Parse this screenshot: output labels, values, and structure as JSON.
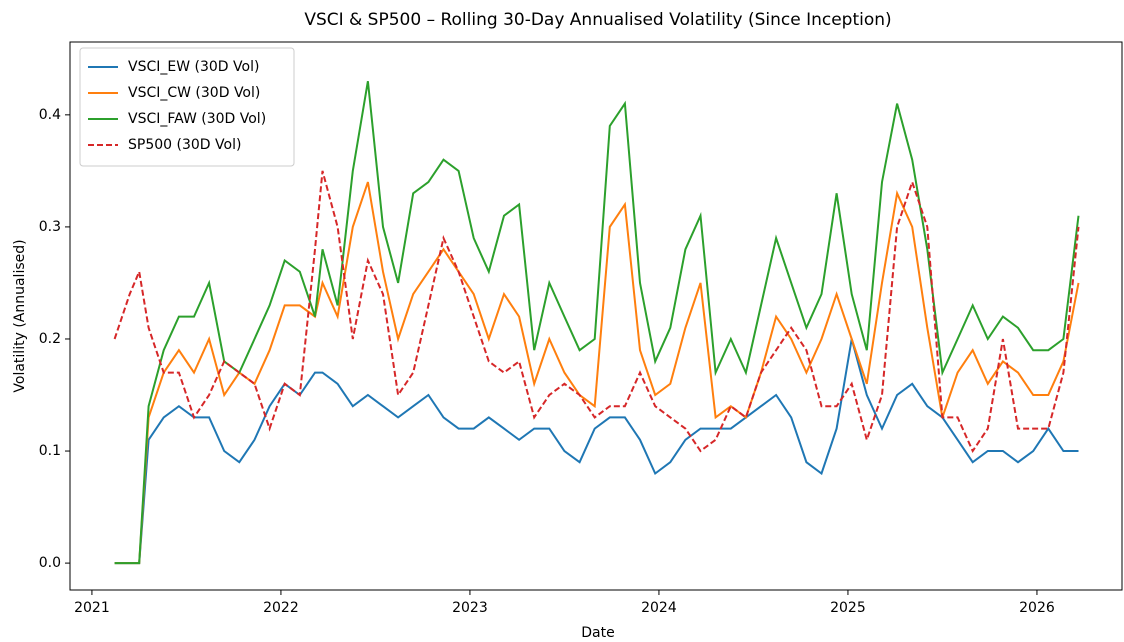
{
  "chart_data": {
    "type": "line",
    "title": "VSCI & SP500 – Rolling 30-Day Annualised Volatility (Since Inception)",
    "x_label": "Date",
    "y_label": "Volatility (Annualised)",
    "x": [
      2021.12,
      2021.2,
      2021.25,
      2021.3,
      2021.38,
      2021.46,
      2021.54,
      2021.62,
      2021.7,
      2021.78,
      2021.86,
      2021.94,
      2022.02,
      2022.1,
      2022.18,
      2022.22,
      2022.3,
      2022.38,
      2022.46,
      2022.54,
      2022.62,
      2022.7,
      2022.78,
      2022.86,
      2022.94,
      2023.02,
      2023.1,
      2023.18,
      2023.26,
      2023.34,
      2023.42,
      2023.5,
      2023.58,
      2023.66,
      2023.74,
      2023.82,
      2023.9,
      2023.98,
      2024.06,
      2024.14,
      2024.22,
      2024.3,
      2024.38,
      2024.46,
      2024.54,
      2024.62,
      2024.7,
      2024.78,
      2024.86,
      2024.94,
      2025.02,
      2025.1,
      2025.18,
      2025.26,
      2025.34,
      2025.42,
      2025.5,
      2025.58,
      2025.66,
      2025.74,
      2025.82,
      2025.9,
      2025.98,
      2026.06,
      2026.14,
      2026.22
    ],
    "series": [
      {
        "name": "VSCI_EW (30D Vol)",
        "color": "#1f77b4",
        "linestyle": "solid",
        "values": [
          0,
          0,
          0,
          0.11,
          0.13,
          0.14,
          0.13,
          0.13,
          0.1,
          0.09,
          0.11,
          0.14,
          0.16,
          0.15,
          0.17,
          0.17,
          0.16,
          0.14,
          0.15,
          0.14,
          0.13,
          0.14,
          0.15,
          0.13,
          0.12,
          0.12,
          0.13,
          0.12,
          0.11,
          0.12,
          0.12,
          0.1,
          0.09,
          0.12,
          0.13,
          0.13,
          0.11,
          0.08,
          0.09,
          0.11,
          0.12,
          0.12,
          0.12,
          0.13,
          0.14,
          0.15,
          0.13,
          0.09,
          0.08,
          0.12,
          0.2,
          0.15,
          0.12,
          0.15,
          0.16,
          0.14,
          0.13,
          0.11,
          0.09,
          0.1,
          0.1,
          0.09,
          0.1,
          0.12,
          0.1,
          0.1
        ]
      },
      {
        "name": "VSCI_CW (30D Vol)",
        "color": "#ff7f0e",
        "linestyle": "solid",
        "values": [
          0,
          0,
          0,
          0.13,
          0.17,
          0.19,
          0.17,
          0.2,
          0.15,
          0.17,
          0.16,
          0.19,
          0.23,
          0.23,
          0.22,
          0.25,
          0.22,
          0.3,
          0.34,
          0.26,
          0.2,
          0.24,
          0.26,
          0.28,
          0.26,
          0.24,
          0.2,
          0.24,
          0.22,
          0.16,
          0.2,
          0.17,
          0.15,
          0.14,
          0.3,
          0.32,
          0.19,
          0.15,
          0.16,
          0.21,
          0.25,
          0.13,
          0.14,
          0.13,
          0.17,
          0.22,
          0.2,
          0.17,
          0.2,
          0.24,
          0.2,
          0.16,
          0.25,
          0.33,
          0.3,
          0.21,
          0.13,
          0.17,
          0.19,
          0.16,
          0.18,
          0.17,
          0.15,
          0.15,
          0.18,
          0.25
        ]
      },
      {
        "name": "VSCI_FAW (30D Vol)",
        "color": "#2ca02c",
        "linestyle": "solid",
        "values": [
          0,
          0,
          0,
          0.14,
          0.19,
          0.22,
          0.22,
          0.25,
          0.18,
          0.17,
          0.2,
          0.23,
          0.27,
          0.26,
          0.22,
          0.28,
          0.23,
          0.35,
          0.43,
          0.3,
          0.25,
          0.33,
          0.34,
          0.36,
          0.35,
          0.29,
          0.26,
          0.31,
          0.32,
          0.19,
          0.25,
          0.22,
          0.19,
          0.2,
          0.39,
          0.41,
          0.25,
          0.18,
          0.21,
          0.28,
          0.31,
          0.17,
          0.2,
          0.17,
          0.23,
          0.29,
          0.25,
          0.21,
          0.24,
          0.33,
          0.24,
          0.19,
          0.34,
          0.41,
          0.36,
          0.28,
          0.17,
          0.2,
          0.23,
          0.2,
          0.22,
          0.21,
          0.19,
          0.19,
          0.2,
          0.31
        ]
      },
      {
        "name": "SP500 (30D Vol)",
        "color": "#d62728",
        "linestyle": "dashed",
        "values": [
          0.2,
          0.24,
          0.26,
          0.21,
          0.17,
          0.17,
          0.13,
          0.15,
          0.18,
          0.17,
          0.16,
          0.12,
          0.16,
          0.15,
          0.28,
          0.35,
          0.3,
          0.2,
          0.27,
          0.24,
          0.15,
          0.17,
          0.23,
          0.29,
          0.26,
          0.22,
          0.18,
          0.17,
          0.18,
          0.13,
          0.15,
          0.16,
          0.15,
          0.13,
          0.14,
          0.14,
          0.17,
          0.14,
          0.13,
          0.12,
          0.1,
          0.11,
          0.14,
          0.13,
          0.17,
          0.19,
          0.21,
          0.19,
          0.14,
          0.14,
          0.16,
          0.11,
          0.15,
          0.3,
          0.34,
          0.3,
          0.13,
          0.13,
          0.1,
          0.12,
          0.2,
          0.12,
          0.12,
          0.12,
          0.17,
          0.3
        ]
      }
    ],
    "xlim": [
      2020.884,
      2026.45
    ],
    "xticks": [
      2021,
      2022,
      2023,
      2024,
      2025,
      2026
    ],
    "ylim": [
      -0.024,
      0.465
    ],
    "yticks": [
      {
        "value": 0,
        "label": "0.0"
      },
      0.1,
      0.2,
      0.3,
      0.4
    ],
    "legend": "upper left",
    "grid": false
  }
}
